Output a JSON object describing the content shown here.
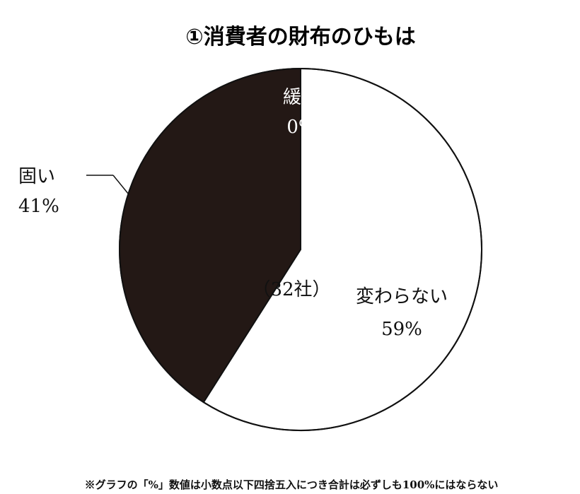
{
  "chart_data": {
    "type": "pie",
    "title": "①消費者の財布のひもは",
    "center_label": "（32社）",
    "start_angle_deg": 0,
    "direction": "clockwise",
    "slices": [
      {
        "label": "緩い",
        "value_label": "0%",
        "value": 0,
        "color": "#231815"
      },
      {
        "label": "変わらない",
        "value_label": "59%",
        "value": 59,
        "color": "#ffffff"
      },
      {
        "label": "固い",
        "value_label": "41%",
        "value": 41,
        "color": "#231815"
      }
    ],
    "footnote": "※グラフの「%」数値は小数点以下四捨五入につき合計は必ずしも100%にはならない"
  }
}
